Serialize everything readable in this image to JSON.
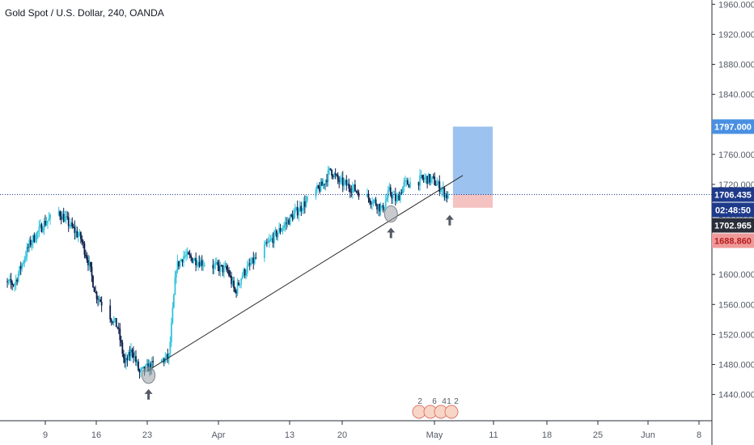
{
  "header": {
    "title": "Gold Spot / U.S. Dollar, 240, OANDA"
  },
  "colors": {
    "candle_up": "#34c3db",
    "candle_down": "#0b1f4a",
    "target_zone": "#4a90e2",
    "stop_zone": "#ef9a9a",
    "last_price": "#1e3a8a",
    "trendline": "#2b2b2b",
    "timer_bg": "#1e3a8a",
    "close_bg": "#2a2e39"
  },
  "price_tags": {
    "target": "1797.000",
    "last": "1706.435",
    "timer": "02:48:50",
    "close": "1702.965",
    "stop": "1688.860"
  },
  "events": [
    "2",
    "6",
    "4",
    "1",
    "2"
  ],
  "chart_data": {
    "type": "candlestick",
    "title": "Gold Spot / U.S. Dollar, 240, OANDA",
    "ylim": [
      1410,
      1965
    ],
    "y_ticks": [
      "1440.000",
      "1480.000",
      "1520.000",
      "1560.000",
      "1600.000",
      "1640.000",
      "1680.000",
      "1720.000",
      "1760.000",
      "1800.000",
      "1840.000",
      "1880.000",
      "1920.000",
      "1960.000"
    ],
    "x_ticks": [
      "9",
      "16",
      "23",
      "Apr",
      "13",
      "20",
      "May",
      "11",
      "18",
      "25",
      "Jun",
      "8"
    ],
    "anchors": [
      [
        "2020-03-02",
        1588
      ],
      [
        "2020-03-04",
        1640
      ],
      [
        "2020-03-06",
        1668
      ],
      [
        "2020-03-08",
        1683
      ],
      [
        "2020-03-09",
        1672
      ],
      [
        "2020-03-11",
        1648
      ],
      [
        "2020-03-12",
        1618
      ],
      [
        "2020-03-13",
        1575
      ],
      [
        "2020-03-16",
        1530
      ],
      [
        "2020-03-17",
        1480
      ],
      [
        "2020-03-18",
        1500
      ],
      [
        "2020-03-19",
        1468
      ],
      [
        "2020-03-20",
        1475
      ],
      [
        "2020-03-23",
        1490
      ],
      [
        "2020-03-24",
        1610
      ],
      [
        "2020-03-25",
        1625
      ],
      [
        "2020-03-27",
        1618
      ],
      [
        "2020-03-31",
        1605
      ],
      [
        "2020-04-01",
        1576
      ],
      [
        "2020-04-02",
        1600
      ],
      [
        "2020-04-07",
        1658
      ],
      [
        "2020-04-09",
        1680
      ],
      [
        "2020-04-13",
        1720
      ],
      [
        "2020-04-14",
        1740
      ],
      [
        "2020-04-15",
        1725
      ],
      [
        "2020-04-17",
        1715
      ],
      [
        "2020-04-20",
        1697
      ],
      [
        "2020-04-21",
        1686
      ],
      [
        "2020-04-22",
        1710
      ],
      [
        "2020-04-23",
        1698
      ],
      [
        "2020-04-24",
        1720
      ],
      [
        "2020-04-27",
        1728
      ],
      [
        "2020-04-28",
        1725
      ],
      [
        "2020-04-29",
        1715
      ],
      [
        "2020-04-30",
        1703
      ]
    ],
    "trendline": {
      "from": [
        "2020-03-20",
        1471
      ],
      "to": [
        "2020-05-02",
        1732
      ]
    },
    "position": {
      "type": "long",
      "entry": 1706.435,
      "target": 1797.0,
      "stop": 1688.86,
      "from": "2020-04-30",
      "to": "2020-05-11"
    },
    "price_line": 1706.435,
    "markers": [
      {
        "date": "2020-03-20",
        "price": 1471
      },
      {
        "date": "2020-04-22",
        "price": 1686
      },
      {
        "date": "2020-04-30",
        "price": 1703
      }
    ]
  }
}
